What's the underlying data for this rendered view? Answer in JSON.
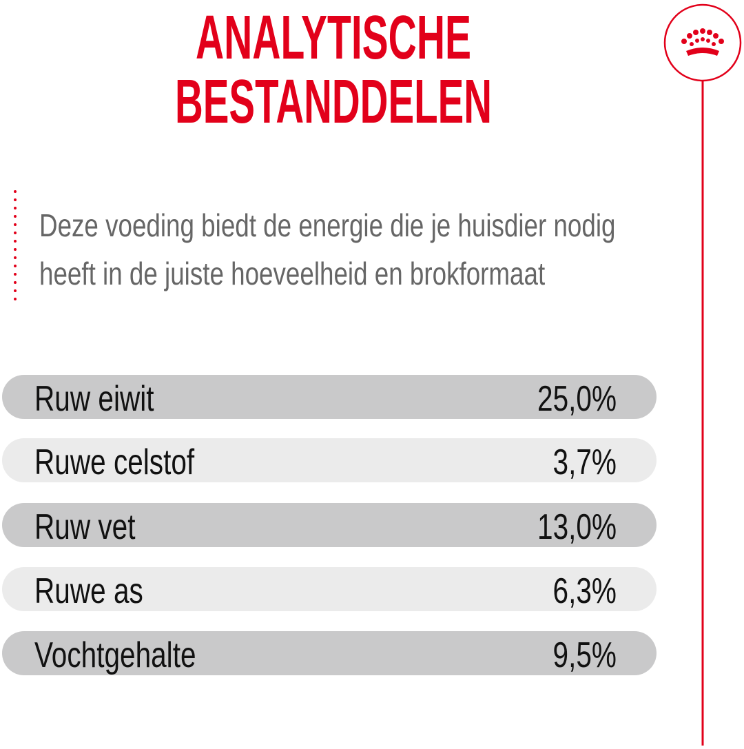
{
  "header": {
    "title": [
      "ANALYTISCHE",
      "BESTANDDELEN"
    ]
  },
  "description": [
    "Deze voeding biedt de energie die je huisdier nodig",
    "heeft in de juiste hoeveelheid en brokformaat"
  ],
  "table": {
    "rows": [
      [
        "Ruw eiwit",
        "25,0%"
      ],
      [
        "Ruwe celstof",
        "3,7%"
      ],
      [
        "Ruw vet",
        "13,0%"
      ],
      [
        "Ruwe as",
        "6,3%"
      ],
      [
        "Vochtgehalte",
        "9,5%"
      ]
    ]
  }
}
